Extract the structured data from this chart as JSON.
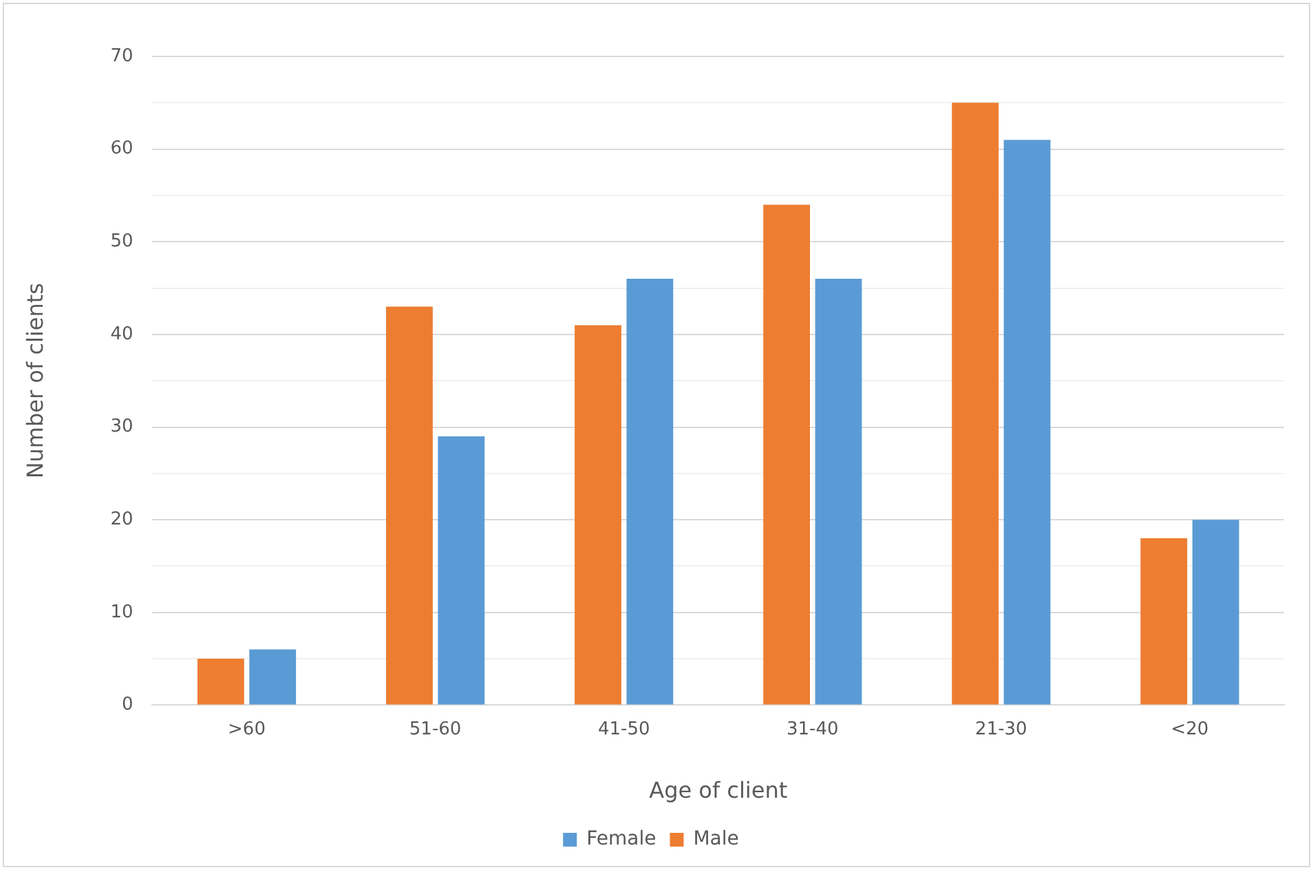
{
  "chart_data": {
    "type": "bar",
    "xlabel": "Age of client",
    "ylabel": "Number of clients",
    "categories": [
      ">60",
      "51-60",
      "41-50",
      "31-40",
      "21-30",
      "<20"
    ],
    "series": [
      {
        "name": "Male",
        "color": "#ed7d31",
        "values": [
          5,
          43,
          41,
          54,
          65,
          18
        ]
      },
      {
        "name": "Female",
        "color": "#5b9bd5",
        "values": [
          6,
          29,
          46,
          46,
          61,
          20
        ]
      }
    ],
    "ylim": [
      0,
      70
    ],
    "yticks": [
      0,
      {
        "value": 5,
        "label": null
      },
      10,
      {
        "value": 15,
        "label": null
      },
      20,
      {
        "value": 25,
        "label": null
      },
      30,
      {
        "value": 35,
        "label": null
      },
      40,
      {
        "value": 45,
        "label": null
      },
      50,
      {
        "value": 55,
        "label": null
      },
      60,
      {
        "value": 65,
        "label": null
      },
      70
    ],
    "grid": "y",
    "legend": "bottom"
  }
}
